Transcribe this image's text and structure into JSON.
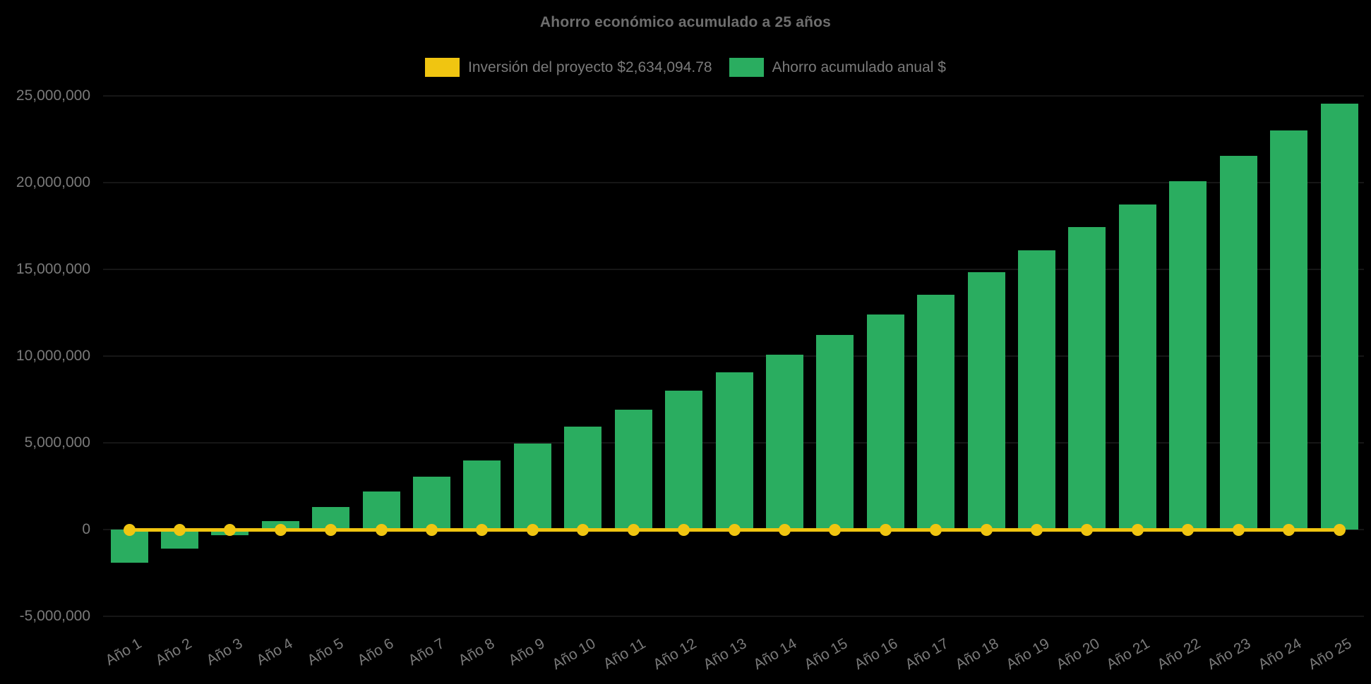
{
  "page": {
    "background_color": "#000000"
  },
  "chart": {
    "title": "Ahorro económico acumulado a 25 años",
    "legend": [
      {
        "id": "investment",
        "label": "Inversión del proyecto $2,634,094.78",
        "color": "#f0c511"
      },
      {
        "id": "savings",
        "label": "Ahorro acumulado anual $",
        "color": "#2aad60"
      }
    ]
  },
  "chart_data": {
    "type": "bar",
    "title": "Ahorro económico acumulado a 25 años",
    "categories": [
      "Año 1",
      "Año 2",
      "Año 3",
      "Año 4",
      "Año 5",
      "Año 6",
      "Año 7",
      "Año 8",
      "Año 9",
      "Año 10",
      "Año 11",
      "Año 12",
      "Año 13",
      "Año 14",
      "Año 15",
      "Año 16",
      "Año 17",
      "Año 18",
      "Año 19",
      "Año 20",
      "Año 21",
      "Año 22",
      "Año 23",
      "Año 24",
      "Año 25"
    ],
    "series": [
      {
        "name": "Inversión del proyecto $2,634,094.78",
        "type": "line",
        "color": "#f0c511",
        "marker": "circle",
        "values": [
          0,
          0,
          0,
          0,
          0,
          0,
          0,
          0,
          0,
          0,
          0,
          0,
          0,
          0,
          0,
          0,
          0,
          0,
          0,
          0,
          0,
          0,
          0,
          0,
          0
        ]
      },
      {
        "name": "Ahorro acumulado anual $",
        "type": "bar",
        "color": "#2aad60",
        "values": [
          -1900000,
          -1100000,
          -330000,
          500000,
          1300000,
          2200000,
          3050000,
          4000000,
          4950000,
          5950000,
          6900000,
          8000000,
          9050000,
          10100000,
          11200000,
          12400000,
          13550000,
          14850000,
          16100000,
          17450000,
          18750000,
          20100000,
          21550000,
          23000000,
          24550000
        ]
      }
    ],
    "xlabel": "",
    "ylabel": "",
    "ylim": [
      -5000000,
      25000000
    ],
    "y_ticks": [
      {
        "value": -5000000,
        "label": "-5,000,000"
      },
      {
        "value": 0,
        "label": "0"
      },
      {
        "value": 5000000,
        "label": "5,000,000"
      },
      {
        "value": 10000000,
        "label": "10,000,000"
      },
      {
        "value": 15000000,
        "label": "15,000,000"
      },
      {
        "value": 20000000,
        "label": "20,000,000"
      },
      {
        "value": 25000000,
        "label": "25,000,000"
      }
    ],
    "grid": "horizontal-faint",
    "legend_position": "top-center",
    "x_tick_rotation_deg": -30
  }
}
